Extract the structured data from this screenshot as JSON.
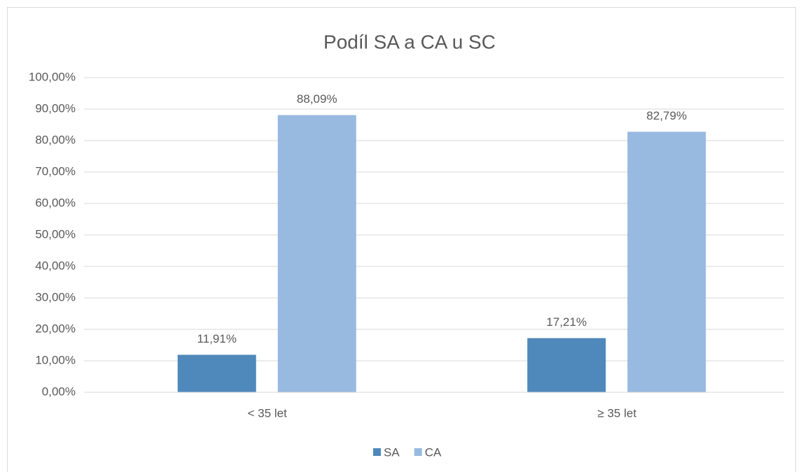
{
  "chart_data": {
    "type": "bar",
    "title": "Podíl SA a CA u SC",
    "categories": [
      "< 35 let",
      "≥ 35 let"
    ],
    "series": [
      {
        "name": "SA",
        "color": "#4f88bb",
        "values": [
          11.91,
          17.21
        ],
        "value_labels": [
          "11,91%",
          "17,21%"
        ]
      },
      {
        "name": "CA",
        "color": "#98b9e0",
        "values": [
          88.09,
          82.79
        ],
        "value_labels": [
          "88,09%",
          "82,79%"
        ]
      }
    ],
    "ylim": [
      0,
      100
    ],
    "yticks": [
      {
        "value": 0,
        "label": "0,00%"
      },
      {
        "value": 10,
        "label": "10,00%"
      },
      {
        "value": 20,
        "label": "20,00%"
      },
      {
        "value": 30,
        "label": "30,00%"
      },
      {
        "value": 40,
        "label": "40,00%"
      },
      {
        "value": 50,
        "label": "50,00%"
      },
      {
        "value": 60,
        "label": "60,00%"
      },
      {
        "value": 70,
        "label": "70,00%"
      },
      {
        "value": 80,
        "label": "80,00%"
      },
      {
        "value": 90,
        "label": "90,00%"
      },
      {
        "value": 100,
        "label": "100,00%"
      }
    ],
    "grid": true,
    "legend": "bottom"
  }
}
